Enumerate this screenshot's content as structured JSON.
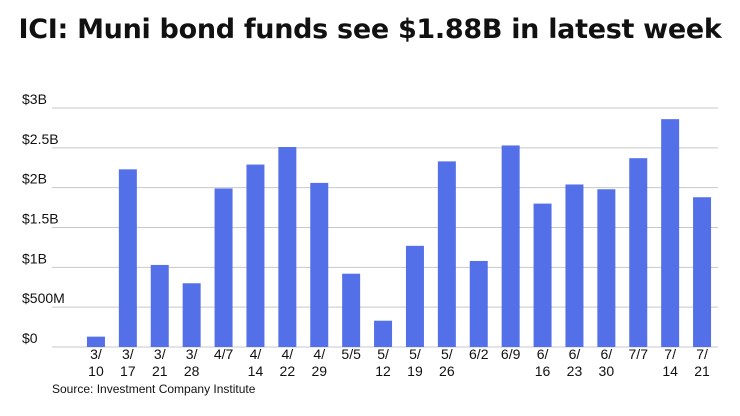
{
  "title": "ICI: Muni bond funds see $1.88B in latest week",
  "source": "Source: Investment Company Institute",
  "colors": {
    "bar": "#5470e8",
    "grid": "#c8c8c8",
    "text": "#111111"
  },
  "chart_data": {
    "type": "bar",
    "title": "ICI: Muni bond funds see $1.88B in latest week",
    "xlabel": "",
    "ylabel": "",
    "ylim": [
      0,
      3
    ],
    "unit": "billions USD",
    "grid": true,
    "legend": "none",
    "yticks": [
      {
        "value": 0,
        "label": "$0"
      },
      {
        "value": 0.5,
        "label": "$500M"
      },
      {
        "value": 1,
        "label": "$1B"
      },
      {
        "value": 1.5,
        "label": "$1.5B"
      },
      {
        "value": 2,
        "label": "$2B"
      },
      {
        "value": 2.5,
        "label": "$2.5B"
      },
      {
        "value": 3,
        "label": "$3B"
      }
    ],
    "categories": [
      [
        "3/",
        "10"
      ],
      [
        "3/",
        "17"
      ],
      [
        "3/",
        "21"
      ],
      [
        "3/",
        "28"
      ],
      [
        "4/7"
      ],
      [
        "4/",
        "14"
      ],
      [
        "4/",
        "22"
      ],
      [
        "4/",
        "29"
      ],
      [
        "5/5"
      ],
      [
        "5/",
        "12"
      ],
      [
        "5/",
        "19"
      ],
      [
        "5/",
        "26"
      ],
      [
        "6/2"
      ],
      [
        "6/9"
      ],
      [
        "6/",
        "16"
      ],
      [
        "6/",
        "23"
      ],
      [
        "6/",
        "30"
      ],
      [
        "7/7"
      ],
      [
        "7/",
        "14"
      ],
      [
        "7/",
        "21"
      ]
    ],
    "values": [
      0.13,
      2.23,
      1.03,
      0.8,
      1.99,
      2.29,
      2.51,
      2.06,
      0.92,
      0.33,
      1.27,
      2.33,
      1.08,
      2.53,
      1.8,
      2.04,
      1.98,
      2.37,
      2.86,
      1.88
    ]
  }
}
